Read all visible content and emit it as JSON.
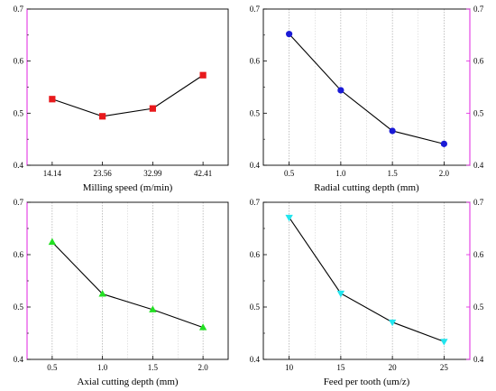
{
  "chart_data": [
    {
      "type": "line",
      "xlabel": "Milling speed (m/min)",
      "ylabel": "",
      "categories": [
        "14.14",
        "23.56",
        "32.99",
        "42.41"
      ],
      "ylim": [
        0.4,
        0.7
      ],
      "yticks": [
        "0.4",
        "0.5",
        "0.6",
        "0.7"
      ],
      "grid": false,
      "right_axis": "left",
      "series": [
        {
          "values": [
            0.527,
            0.494,
            0.509,
            0.573
          ],
          "marker": "square",
          "color": "#e8191c"
        }
      ]
    },
    {
      "type": "line",
      "xlabel": "Radial cutting depth (mm)",
      "ylabel": "",
      "categories": [
        "0.5",
        "1.0",
        "1.5",
        "2.0"
      ],
      "ylim": [
        0.4,
        0.7
      ],
      "yticks": [
        "0.4",
        "0.5",
        "0.6",
        "0.7"
      ],
      "grid": true,
      "right_axis": "right",
      "series": [
        {
          "values": [
            0.652,
            0.544,
            0.466,
            0.441
          ],
          "marker": "circle",
          "color": "#1a1ad6"
        }
      ]
    },
    {
      "type": "line",
      "xlabel": "Axial cutting depth (mm)",
      "ylabel": "",
      "categories": [
        "0.5",
        "1.0",
        "1.5",
        "2.0"
      ],
      "ylim": [
        0.4,
        0.7
      ],
      "yticks": [
        "0.4",
        "0.5",
        "0.6",
        "0.7"
      ],
      "grid": true,
      "right_axis": "left",
      "series": [
        {
          "values": [
            0.624,
            0.525,
            0.495,
            0.461
          ],
          "marker": "triangle-up",
          "color": "#22e022"
        }
      ]
    },
    {
      "type": "line",
      "xlabel": "Feed per tooth (um/z)",
      "ylabel": "",
      "categories": [
        "10",
        "15",
        "20",
        "25"
      ],
      "ylim": [
        0.4,
        0.7
      ],
      "yticks": [
        "0.4",
        "0.5",
        "0.6",
        "0.7"
      ],
      "grid": true,
      "right_axis": "right",
      "series": [
        {
          "values": [
            0.671,
            0.526,
            0.471,
            0.434
          ],
          "marker": "triangle-down",
          "color": "#22e5ee"
        }
      ]
    }
  ],
  "colors": {
    "axis": "#000000",
    "secondary_axis": "#e020e0",
    "grid": "#9a9a9a",
    "line": "#000000"
  }
}
